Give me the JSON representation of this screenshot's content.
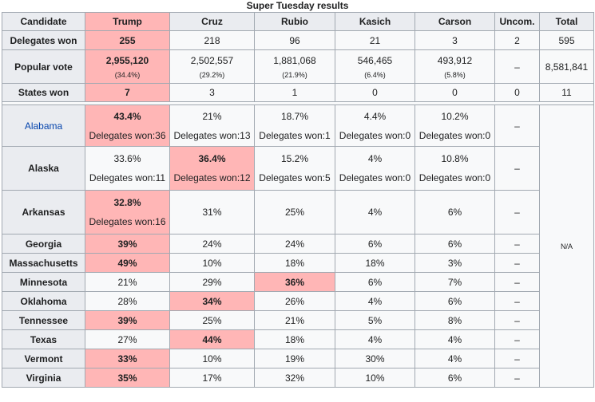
{
  "title": "Super Tuesday results",
  "headers": [
    "Candidate",
    "Trump",
    "Cruz",
    "Rubio",
    "Kasich",
    "Carson",
    "Uncom.",
    "Total"
  ],
  "summary": {
    "delegates": {
      "label": "Delegates won",
      "values": [
        "255",
        "218",
        "96",
        "21",
        "3",
        "2",
        "595"
      ]
    },
    "popular": {
      "label": "Popular vote",
      "values": [
        "2,955,120",
        "2,502,557",
        "1,881,068",
        "546,465",
        "493,912"
      ],
      "pcts": [
        "(34.4%)",
        "(29.2%)",
        "(21.9%)",
        "(6.4%)",
        "(5.8%)"
      ],
      "uncom": "–",
      "total": "8,581,841"
    },
    "states": {
      "label": "States won",
      "values": [
        "7",
        "3",
        "1",
        "0",
        "0",
        "0",
        "11"
      ]
    }
  },
  "na": "N/A",
  "dash": "–",
  "states": [
    {
      "name": "Alabama",
      "cells": [
        {
          "pct": "43.4%",
          "del": "Delegates won:36"
        },
        {
          "pct": "21%",
          "del": "Delegates won:13"
        },
        {
          "pct": "18.7%",
          "del": "Delegates won:1"
        },
        {
          "pct": "4.4%",
          "del": "Delegates won:0"
        },
        {
          "pct": "10.2%",
          "del": "Delegates won:0"
        }
      ]
    },
    {
      "name": "Alaska",
      "cells": [
        {
          "pct": "33.6%",
          "del": "Delegates won:11"
        },
        {
          "pct": "36.4%",
          "del": "Delegates won:12"
        },
        {
          "pct": "15.2%",
          "del": "Delegates won:5"
        },
        {
          "pct": "4%",
          "del": "Delegates won:0"
        },
        {
          "pct": "10.8%",
          "del": "Delegates won:0"
        }
      ]
    },
    {
      "name": "Arkansas",
      "cells": [
        {
          "pct": "32.8%",
          "del": "Delegates won:16"
        },
        {
          "pct": "31%"
        },
        {
          "pct": "25%"
        },
        {
          "pct": "4%"
        },
        {
          "pct": "6%"
        }
      ]
    },
    {
      "name": "Georgia",
      "cells": [
        "39%",
        "24%",
        "24%",
        "6%",
        "6%"
      ]
    },
    {
      "name": "Massachusetts",
      "cells": [
        "49%",
        "10%",
        "18%",
        "18%",
        "3%"
      ]
    },
    {
      "name": "Minnesota",
      "cells": [
        "21%",
        "29%",
        "36%",
        "6%",
        "7%"
      ]
    },
    {
      "name": "Oklahoma",
      "cells": [
        "28%",
        "34%",
        "26%",
        "4%",
        "6%"
      ]
    },
    {
      "name": "Tennessee",
      "cells": [
        "39%",
        "25%",
        "21%",
        "5%",
        "8%"
      ]
    },
    {
      "name": "Texas",
      "cells": [
        "27%",
        "44%",
        "18%",
        "4%",
        "4%"
      ]
    },
    {
      "name": "Vermont",
      "cells": [
        "33%",
        "10%",
        "19%",
        "30%",
        "4%"
      ]
    },
    {
      "name": "Virginia",
      "cells": [
        "35%",
        "17%",
        "32%",
        "10%",
        "6%"
      ]
    }
  ]
}
